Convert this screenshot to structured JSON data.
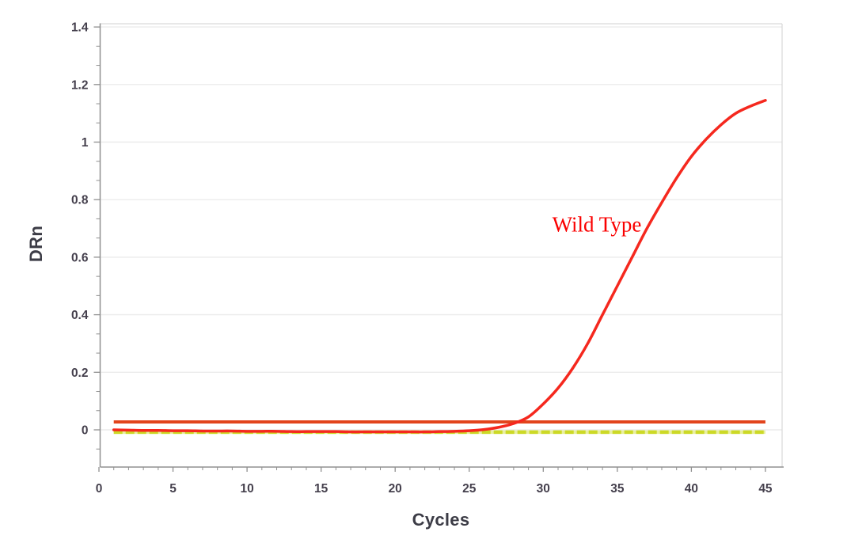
{
  "chart_data": {
    "type": "line",
    "title": "",
    "xlabel": "Cycles",
    "ylabel": "DRn",
    "xlim": [
      0,
      46
    ],
    "ylim": [
      -0.13,
      1.41
    ],
    "grid": "horizontal-only",
    "legend_position": "none",
    "annotation": {
      "text": "Wild Type",
      "x": 33.6,
      "y": 0.71
    },
    "x_ticks": [
      {
        "v": 0,
        "label": "0"
      },
      {
        "v": 5,
        "label": "5"
      },
      {
        "v": 10,
        "label": "10"
      },
      {
        "v": 15,
        "label": "15"
      },
      {
        "v": 20,
        "label": "20"
      },
      {
        "v": 25,
        "label": "25"
      },
      {
        "v": 30,
        "label": "30"
      },
      {
        "v": 35,
        "label": "35"
      },
      {
        "v": 40,
        "label": "40"
      },
      {
        "v": 45,
        "label": "45"
      }
    ],
    "x_minor_tick_every": 1,
    "y_ticks": [
      {
        "v": 0,
        "label": "0"
      },
      {
        "v": 0.2,
        "label": "0.2"
      },
      {
        "v": 0.4,
        "label": "0.4"
      },
      {
        "v": 0.6,
        "label": "0.6"
      },
      {
        "v": 0.8,
        "label": "0.8"
      },
      {
        "v": 1,
        "label": "1"
      },
      {
        "v": 1.2,
        "label": "1.2"
      },
      {
        "v": 1.4,
        "label": "1.4"
      }
    ],
    "y_minor_ticks_per_interval": 2,
    "colors": {
      "wild_type": "#f5281e",
      "threshold": "#e2441c",
      "flat_yellow": "#ccd926",
      "flat_yellow_gap": "#e9efa0",
      "annotation_text": "#fa0000",
      "axis": "#909090",
      "grid": "#ececec",
      "border": "#d9d9d9",
      "tick_text": "#45404d"
    },
    "series": [
      {
        "id": "wild-type-curve",
        "label": "Wild Type",
        "style": "smooth",
        "stroke_width": 3.5,
        "x": [
          1,
          2,
          3,
          4,
          5,
          6,
          7,
          8,
          9,
          10,
          11,
          12,
          13,
          14,
          15,
          16,
          17,
          18,
          19,
          20,
          21,
          22,
          23,
          24,
          25,
          26,
          27,
          28,
          29,
          30,
          31,
          32,
          33,
          34,
          35,
          36,
          37,
          38,
          39,
          40,
          41,
          42,
          43,
          44,
          45
        ],
        "y": [
          0.0,
          -0.001,
          -0.002,
          -0.002,
          -0.003,
          -0.003,
          -0.004,
          -0.004,
          -0.004,
          -0.005,
          -0.005,
          -0.005,
          -0.006,
          -0.006,
          -0.006,
          -0.006,
          -0.007,
          -0.007,
          -0.007,
          -0.007,
          -0.007,
          -0.007,
          -0.006,
          -0.005,
          -0.003,
          0.001,
          0.009,
          0.022,
          0.045,
          0.09,
          0.145,
          0.215,
          0.3,
          0.4,
          0.5,
          0.6,
          0.7,
          0.79,
          0.875,
          0.95,
          1.01,
          1.06,
          1.1,
          1.125,
          1.145
        ]
      },
      {
        "id": "threshold-line",
        "label": "",
        "style": "solid",
        "stroke_width": 4,
        "x": [
          1,
          45
        ],
        "y": [
          0.0275,
          0.0275
        ]
      },
      {
        "id": "no-amplification-line",
        "label": "",
        "style": "dashed",
        "stroke_width": 4.5,
        "x": [
          1,
          45
        ],
        "y": [
          -0.008,
          -0.008
        ]
      }
    ]
  }
}
